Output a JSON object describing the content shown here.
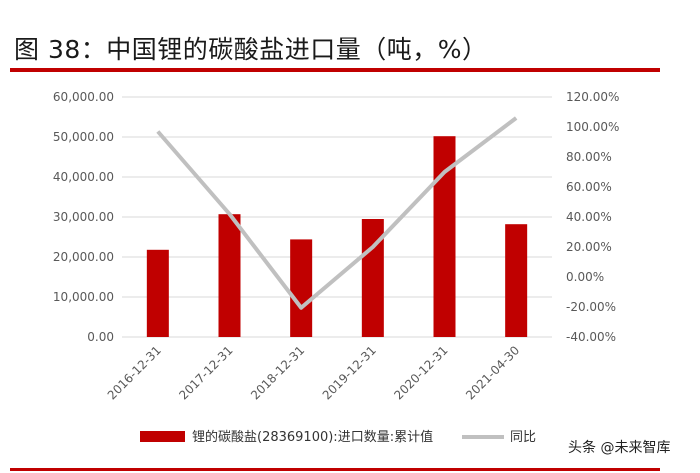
{
  "header": {
    "title": "图 38：中国锂的碳酸盐进口量（吨，%）"
  },
  "watermark": {
    "text": "头条 @未来智库"
  },
  "chart_data": {
    "type": "bar",
    "categories": [
      "2016-12-31",
      "2017-12-31",
      "2018-12-31",
      "2019-12-31",
      "2020-12-31",
      "2021-04-30"
    ],
    "series": [
      {
        "name": "锂的碳酸盐(28369100):进口数量:累计值",
        "type": "bar",
        "axis": "left",
        "color": "#c00000",
        "values": [
          21800,
          30700,
          24400,
          29500,
          50200,
          28200
        ]
      },
      {
        "name": "同比",
        "type": "line",
        "axis": "right",
        "color": "#c0c0c0",
        "values": [
          97.0,
          42.0,
          -20.5,
          20.0,
          70.0,
          106.0
        ]
      }
    ],
    "y_left": {
      "ylim": [
        0,
        60000
      ],
      "ticks": [
        "0.00",
        "10,000.00",
        "20,000.00",
        "30,000.00",
        "40,000.00",
        "50,000.00",
        "60,000.00"
      ]
    },
    "y_right": {
      "ylim": [
        -40,
        120
      ],
      "ticks": [
        "-40.00%",
        "-20.00%",
        "0.00%",
        "20.00%",
        "40.00%",
        "60.00%",
        "80.00%",
        "100.00%",
        "120.00%"
      ]
    },
    "grid": true,
    "legend_position": "bottom"
  }
}
